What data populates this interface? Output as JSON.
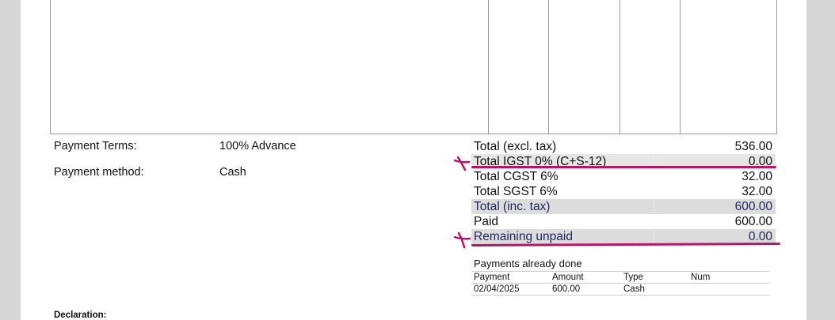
{
  "terms": {
    "payment_terms_label": "Payment Terms:",
    "payment_terms_value": "100% Advance",
    "payment_method_label": "Payment method:",
    "payment_method_value": "Cash"
  },
  "totals": [
    {
      "label": "Total (excl. tax)",
      "value": "536.00"
    },
    {
      "label": "Total IGST 0% (C+S-12)",
      "value": "0.00"
    },
    {
      "label": "Total CGST 6%",
      "value": "32.00"
    },
    {
      "label": "Total SGST 6%",
      "value": "32.00"
    },
    {
      "label": "Total (inc. tax)",
      "value": "600.00"
    },
    {
      "label": "Paid",
      "value": "600.00"
    },
    {
      "label": "Remaining unpaid",
      "value": "0.00"
    }
  ],
  "payments": {
    "title": "Payments already done",
    "headers": [
      "Payment",
      "Amount",
      "Type",
      "Num"
    ],
    "rows": [
      [
        "02/04/2025",
        "600.00",
        "Cash",
        ""
      ]
    ]
  },
  "declaration_label": "Declaration:",
  "annotation_color": "#b5166a"
}
